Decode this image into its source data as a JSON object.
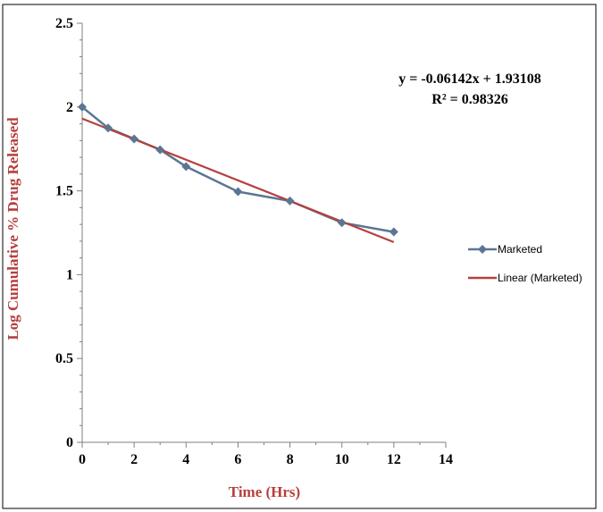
{
  "chart_data": {
    "type": "line",
    "xlabel": "Time (Hrs)",
    "ylabel": "Log  Cumulative %  Drug Released",
    "xlim": [
      0,
      14
    ],
    "ylim": [
      0,
      2.5
    ],
    "x_ticks": [
      "0",
      "2",
      "4",
      "6",
      "8",
      "10",
      "12",
      "14"
    ],
    "y_ticks": [
      "0",
      "0.5",
      "1",
      "1.5",
      "2",
      "2.5"
    ],
    "grid": false,
    "legend_position": "right",
    "series": [
      {
        "name": "Marketed",
        "color": "#5b7693",
        "marker": "diamond",
        "x": [
          0,
          1,
          2,
          3,
          4,
          6,
          8,
          10,
          12
        ],
        "y": [
          2.0,
          1.875,
          1.81,
          1.745,
          1.645,
          1.495,
          1.44,
          1.31,
          1.255
        ]
      }
    ],
    "trendline": {
      "name": "Linear (Marketed)",
      "color": "#b5403e",
      "slope": -0.06142,
      "intercept": 1.93108,
      "x_range": [
        0,
        12
      ]
    },
    "annotations": {
      "equation": "y = -0.06142x + 1.93108",
      "r_squared": "R² = 0.98326"
    }
  }
}
